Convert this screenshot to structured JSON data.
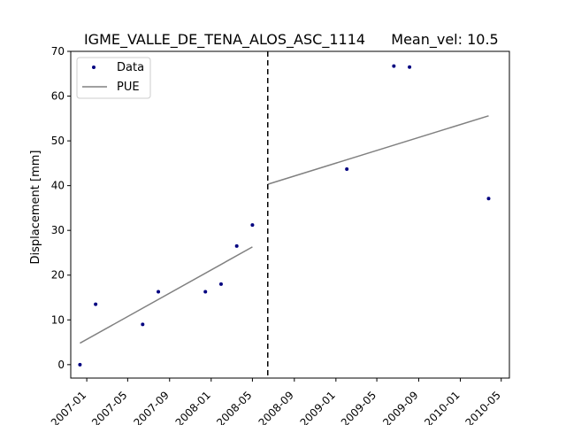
{
  "chart_data": {
    "type": "scatter",
    "title_left": "IGME_VALLE_DE_TENA_ALOS_ASC_1114",
    "title_right": "Mean_vel: 10.5",
    "xlabel": "",
    "ylabel": "Displacement [mm]",
    "ylim": [
      -3,
      70
    ],
    "yticks": [
      0,
      10,
      20,
      30,
      40,
      50,
      60,
      70
    ],
    "xlim": [
      "2006-11-15",
      "2010-05-25"
    ],
    "xticks": [
      {
        "date": "2007-01-01",
        "label": "2007-01"
      },
      {
        "date": "2007-05-01",
        "label": "2007-05"
      },
      {
        "date": "2007-09-01",
        "label": "2007-09"
      },
      {
        "date": "2008-01-01",
        "label": "2008-01"
      },
      {
        "date": "2008-05-01",
        "label": "2008-05"
      },
      {
        "date": "2008-09-01",
        "label": "2008-09"
      },
      {
        "date": "2009-01-01",
        "label": "2009-01"
      },
      {
        "date": "2009-05-01",
        "label": "2009-05"
      },
      {
        "date": "2009-09-01",
        "label": "2009-09"
      },
      {
        "date": "2010-01-01",
        "label": "2010-01"
      },
      {
        "date": "2010-05-01",
        "label": "2010-05"
      }
    ],
    "grid": false,
    "legend_position": "top-left",
    "series": [
      {
        "name": "Data",
        "kind": "points",
        "color": "#000080",
        "points": [
          {
            "x": "2006-12-12",
            "y": 0
          },
          {
            "x": "2007-01-27",
            "y": 13.5
          },
          {
            "x": "2007-06-14",
            "y": 9
          },
          {
            "x": "2007-07-30",
            "y": 16.3
          },
          {
            "x": "2007-12-15",
            "y": 16.3
          },
          {
            "x": "2008-01-30",
            "y": 18
          },
          {
            "x": "2008-03-16",
            "y": 26.5
          },
          {
            "x": "2008-05-01",
            "y": 31.2
          },
          {
            "x": "2009-02-02",
            "y": 43.7
          },
          {
            "x": "2009-06-20",
            "y": 66.7
          },
          {
            "x": "2009-08-05",
            "y": 66.5
          },
          {
            "x": "2010-03-25",
            "y": 37.1
          }
        ]
      },
      {
        "name": "PUE",
        "kind": "line",
        "color": "#808080",
        "segments": [
          [
            {
              "x": "2006-12-12",
              "y": 4.8
            },
            {
              "x": "2008-05-01",
              "y": 26.3
            }
          ],
          [
            {
              "x": "2008-06-15",
              "y": 40.3
            },
            {
              "x": "2010-03-25",
              "y": 55.6
            }
          ]
        ]
      }
    ],
    "vline": {
      "x": "2008-06-15",
      "style": "dashed",
      "color": "#000000"
    }
  }
}
